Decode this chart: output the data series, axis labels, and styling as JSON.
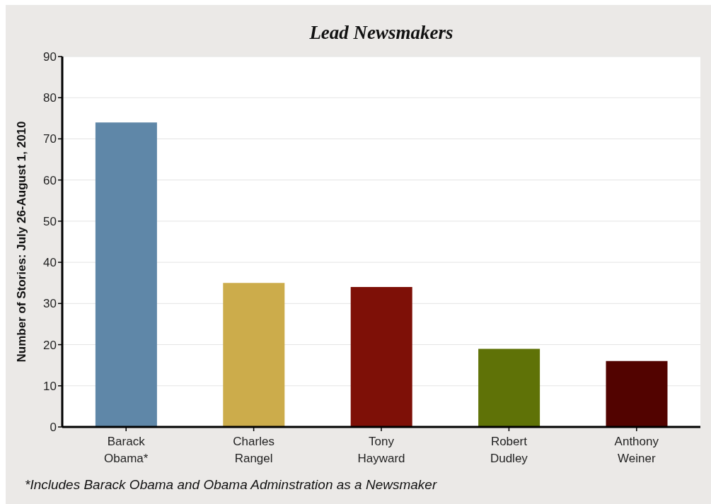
{
  "chart_data": {
    "type": "bar",
    "title": "Lead Newsmakers",
    "ylabel": "Number of Stories: July 26-August 1, 2010",
    "categories": [
      "Barack Obama*",
      "Charles Rangel",
      "Tony Hayward",
      "Robert Dudley",
      "Anthony Weiner"
    ],
    "values": [
      74,
      35,
      34,
      19,
      16
    ],
    "colors": [
      "#5f87a8",
      "#ccac4b",
      "#7e1007",
      "#5f7207",
      "#520300"
    ],
    "ylim": [
      0,
      90
    ],
    "yticks": [
      0,
      10,
      20,
      30,
      40,
      50,
      60,
      70,
      80,
      90
    ],
    "grid": "y",
    "annotations": [
      "*Includes Barack Obama and Obama Adminstration as a Newsmaker"
    ]
  }
}
